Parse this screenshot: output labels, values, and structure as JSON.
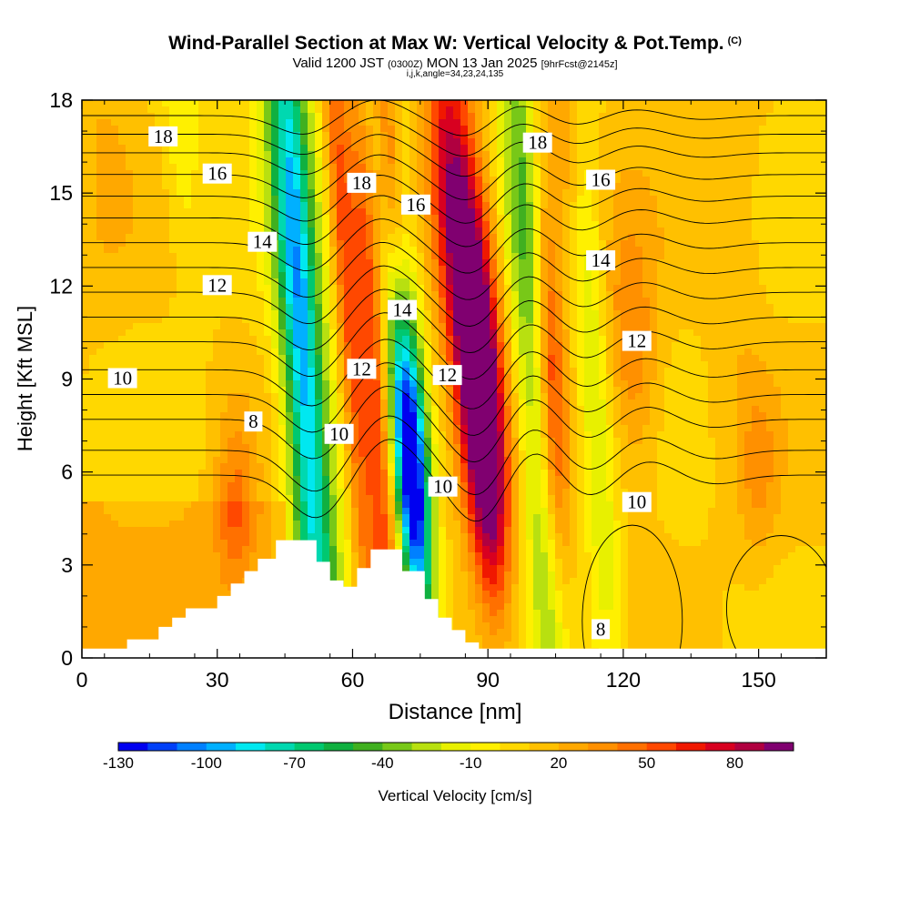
{
  "title": {
    "main": "Wind-Parallel Section at Max W: Vertical Velocity & Pot.Temp.",
    "copyright_mark": "(C)",
    "valid_prefix": "Valid 1200 JST",
    "valid_utc": "(0300Z)",
    "valid_date": "MON 13 Jan 2025",
    "forecast_info": "[9hrFcst@2145z]",
    "params": "i,j,k,angle=34,23,24,135"
  },
  "chart_data": {
    "type": "heatmap",
    "xlabel": "Distance [nm]",
    "ylabel": "Height [Kft MSL]",
    "xlim": [
      0,
      165
    ],
    "ylim": [
      0,
      18
    ],
    "x_ticks": [
      0,
      30,
      60,
      90,
      120,
      150
    ],
    "y_ticks": [
      0,
      3,
      6,
      9,
      12,
      15,
      18
    ],
    "colorbar": {
      "label": "Vertical Velocity [cm/s]",
      "tick_values": [
        -130,
        -100,
        -70,
        -40,
        -10,
        20,
        50,
        80
      ],
      "range": [
        -130,
        100
      ],
      "step": 10,
      "colors": [
        "#0000f0",
        "#0040f8",
        "#0080ff",
        "#00b0ff",
        "#00e8f0",
        "#00d8b0",
        "#00c870",
        "#10b040",
        "#40b020",
        "#78c818",
        "#b8e010",
        "#e8f000",
        "#fff000",
        "#ffd800",
        "#ffc000",
        "#ffa800",
        "#ff9000",
        "#ff7000",
        "#ff4800",
        "#f01800",
        "#d80020",
        "#b00040",
        "#800070"
      ]
    },
    "terrain_profile": {
      "x_nm": [
        0,
        10,
        10,
        17,
        17,
        20,
        20,
        23,
        23,
        30,
        30,
        33,
        33,
        36,
        36,
        39,
        39,
        43,
        43,
        46,
        46,
        52,
        52,
        55,
        55,
        58,
        58,
        61,
        61,
        64,
        64,
        71,
        71,
        76,
        76,
        79,
        79,
        82,
        82,
        85,
        85,
        88,
        88,
        165
      ],
      "height_kft": [
        0.3,
        0.3,
        0.6,
        0.6,
        1.0,
        1.0,
        1.3,
        1.3,
        1.6,
        1.6,
        2.0,
        2.0,
        2.4,
        2.4,
        2.8,
        2.8,
        3.2,
        3.2,
        3.8,
        3.8,
        3.8,
        3.8,
        3.1,
        3.1,
        2.5,
        2.5,
        2.3,
        2.3,
        2.9,
        2.9,
        3.5,
        3.5,
        2.8,
        2.8,
        1.9,
        1.9,
        1.3,
        1.3,
        0.9,
        0.9,
        0.5,
        0.5,
        0.3,
        0.3
      ]
    },
    "vertical_velocity_features": [
      {
        "x": 50,
        "y": 8,
        "sx": 4,
        "sy": 20,
        "tilt": -0.45,
        "w": -70
      },
      {
        "x": 48,
        "y": 11,
        "sx": 2.5,
        "sy": 7,
        "tilt": -0.45,
        "w": -40
      },
      {
        "x": 58,
        "y": 13,
        "sx": 1.8,
        "sy": 10,
        "tilt": -0.45,
        "w": 40
      },
      {
        "x": 65,
        "y": 8,
        "sx": 2.5,
        "sy": 7,
        "tilt": -0.45,
        "w": 55
      },
      {
        "x": 73,
        "y": 6,
        "sx": 2.5,
        "sy": 3.5,
        "tilt": -0.45,
        "w": -130
      },
      {
        "x": 71,
        "y": 11,
        "sx": 3,
        "sy": 8,
        "tilt": -0.45,
        "w": -40
      },
      {
        "x": 68,
        "y": 17,
        "sx": 2,
        "sy": 5,
        "tilt": -0.45,
        "w": 50
      },
      {
        "x": 88,
        "y": 10,
        "sx": 3.5,
        "sy": 4,
        "tilt": -0.45,
        "w": 100
      },
      {
        "x": 82,
        "y": 15,
        "sx": 3.5,
        "sy": 5,
        "tilt": -0.45,
        "w": 60
      },
      {
        "x": 90,
        "y": 5,
        "sx": 3,
        "sy": 3,
        "tilt": -0.45,
        "w": 50
      },
      {
        "x": 99,
        "y": 12,
        "sx": 3.2,
        "sy": 14,
        "tilt": -0.45,
        "w": -50
      },
      {
        "x": 104,
        "y": 9,
        "sx": 2.2,
        "sy": 5,
        "tilt": -0.3,
        "w": 60
      },
      {
        "x": 113,
        "y": 10,
        "sx": 2.5,
        "sy": 12,
        "tilt": -0.4,
        "w": -30
      },
      {
        "x": 122,
        "y": 10,
        "sx": 4,
        "sy": 3,
        "tilt": -0.3,
        "w": 30
      },
      {
        "x": 108,
        "y": 17,
        "sx": 3,
        "sy": 3,
        "tilt": -0.3,
        "w": 30
      },
      {
        "x": 34,
        "y": 5,
        "sx": 3,
        "sy": 2,
        "tilt": 0,
        "w": 30
      },
      {
        "x": 22,
        "y": 17,
        "sx": 3,
        "sy": 3,
        "tilt": -0.3,
        "w": -20
      },
      {
        "x": 145,
        "y": 14,
        "sx": 4,
        "sy": 5,
        "tilt": 0,
        "w": 10
      },
      {
        "x": 150,
        "y": 6,
        "sx": 3,
        "sy": 2,
        "tilt": 0,
        "w": 20
      },
      {
        "x": 5,
        "y": 16,
        "sx": 4,
        "sy": 3,
        "tilt": 0,
        "w": 10
      }
    ],
    "theta_contours": {
      "base_heights_kft": [
        5.9,
        6.7,
        7.7,
        8.5,
        9.3,
        10.2,
        11.0,
        11.8,
        12.6,
        13.4,
        14.2,
        14.9,
        15.6,
        16.3,
        16.9,
        17.5
      ],
      "wave_x_nm": [
        52,
        68,
        88,
        100,
        112,
        125,
        140
      ],
      "wave_amp_kft": [
        -1.4,
        1.2,
        -1.6,
        1.0,
        -0.8,
        0.5,
        -0.3
      ],
      "labels": [
        {
          "text": "18",
          "x": 18,
          "y": 16.8
        },
        {
          "text": "16",
          "x": 30,
          "y": 15.6
        },
        {
          "text": "14",
          "x": 40,
          "y": 13.4
        },
        {
          "text": "12",
          "x": 30,
          "y": 12
        },
        {
          "text": "10",
          "x": 9,
          "y": 9
        },
        {
          "text": "8",
          "x": 38,
          "y": 7.6
        },
        {
          "text": "18",
          "x": 62,
          "y": 15.3
        },
        {
          "text": "16",
          "x": 74,
          "y": 14.6
        },
        {
          "text": "14",
          "x": 71,
          "y": 11.2
        },
        {
          "text": "12",
          "x": 62,
          "y": 9.3
        },
        {
          "text": "10",
          "x": 57,
          "y": 7.2
        },
        {
          "text": "12",
          "x": 81,
          "y": 9.1
        },
        {
          "text": "10",
          "x": 80,
          "y": 5.5
        },
        {
          "text": "18",
          "x": 101,
          "y": 16.6
        },
        {
          "text": "16",
          "x": 115,
          "y": 15.4
        },
        {
          "text": "14",
          "x": 115,
          "y": 12.8
        },
        {
          "text": "12",
          "x": 123,
          "y": 10.2
        },
        {
          "text": "10",
          "x": 123,
          "y": 5
        },
        {
          "text": "8",
          "x": 115,
          "y": 0.9
        }
      ]
    }
  }
}
